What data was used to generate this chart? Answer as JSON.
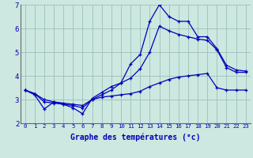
{
  "xlabel": "Graphe des températures (°c)",
  "x_labels": [
    "0",
    "1",
    "2",
    "3",
    "4",
    "5",
    "6",
    "7",
    "8",
    "9",
    "10",
    "11",
    "12",
    "13",
    "14",
    "15",
    "16",
    "17",
    "18",
    "19",
    "20",
    "21",
    "22",
    "23"
  ],
  "ylim": [
    2,
    7
  ],
  "xlim": [
    -0.5,
    23.5
  ],
  "yticks": [
    2,
    3,
    4,
    5,
    6,
    7
  ],
  "background_color": "#cce8e0",
  "grid_color": "#9dbfb8",
  "line_color": "#0000bb",
  "lines": [
    [
      3.4,
      3.2,
      2.6,
      2.9,
      2.8,
      2.65,
      2.4,
      3.05,
      3.3,
      3.55,
      3.7,
      4.5,
      4.9,
      6.3,
      7.0,
      6.5,
      6.3,
      6.3,
      5.65,
      5.65,
      5.15,
      4.45,
      4.25,
      4.2
    ],
    [
      3.4,
      3.25,
      3.0,
      2.9,
      2.85,
      2.8,
      2.75,
      3.0,
      3.1,
      3.15,
      3.2,
      3.25,
      3.35,
      3.55,
      3.7,
      3.85,
      3.95,
      4.0,
      4.05,
      4.1,
      3.5,
      3.4,
      3.4,
      3.4
    ],
    [
      3.4,
      3.25,
      2.9,
      2.85,
      2.8,
      2.75,
      2.65,
      3.0,
      3.2,
      3.4,
      3.7,
      3.9,
      4.3,
      5.0,
      6.1,
      5.9,
      5.75,
      5.65,
      5.55,
      5.5,
      5.1,
      4.35,
      4.15,
      4.15
    ]
  ]
}
